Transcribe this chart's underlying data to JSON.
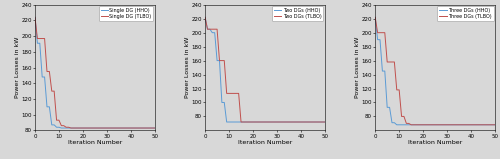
{
  "figsize": [
    5.0,
    1.59
  ],
  "dpi": 100,
  "background_color": "#d8d8d8",
  "subplots": [
    {
      "legend_labels": [
        "Single DG (HHO)",
        "Single DG (TLBO)"
      ],
      "xlabel": "Iteration Number",
      "ylabel": "Power Losses in kW",
      "ylim": [
        80,
        240
      ],
      "xlim": [
        0,
        50
      ],
      "yticks": [
        80,
        100,
        120,
        140,
        160,
        180,
        200,
        220,
        240
      ],
      "xticks": [
        0,
        10,
        20,
        30,
        40,
        50
      ],
      "hho_x": [
        0,
        1,
        2,
        3,
        4,
        5,
        6,
        7,
        8,
        9,
        10,
        11,
        12,
        13,
        14,
        50
      ],
      "hho_y": [
        224,
        191,
        191,
        148,
        148,
        110,
        110,
        87,
        87,
        84,
        84,
        83,
        83,
        83,
        83,
        83
      ],
      "tlbo_x": [
        0,
        1,
        2,
        3,
        4,
        5,
        6,
        7,
        8,
        9,
        10,
        11,
        12,
        13,
        14,
        15,
        50
      ],
      "tlbo_y": [
        224,
        197,
        197,
        197,
        197,
        155,
        155,
        130,
        130,
        93,
        93,
        86,
        86,
        84,
        84,
        83,
        83
      ],
      "hho_color": "#5b9bd5",
      "tlbo_color": "#c0504d"
    },
    {
      "legend_labels": [
        "Two DGs (HHO)",
        "Two DGs (TLBO)"
      ],
      "xlabel": "Iteration Number",
      "ylabel": "Power Losses in kW",
      "ylim": [
        60,
        240
      ],
      "xlim": [
        0,
        50
      ],
      "yticks": [
        80,
        100,
        120,
        140,
        160,
        180,
        200,
        220,
        240
      ],
      "xticks": [
        0,
        10,
        20,
        30,
        40,
        50
      ],
      "hho_x": [
        0,
        1,
        2,
        3,
        4,
        5,
        6,
        7,
        8,
        9,
        10,
        11,
        12,
        13,
        14,
        50
      ],
      "hho_y": [
        222,
        205,
        205,
        200,
        200,
        160,
        160,
        100,
        100,
        72,
        72,
        72,
        72,
        72,
        72,
        72
      ],
      "tlbo_x": [
        0,
        1,
        2,
        3,
        4,
        5,
        6,
        7,
        8,
        9,
        10,
        11,
        12,
        13,
        14,
        15,
        16,
        17,
        50
      ],
      "tlbo_y": [
        222,
        205,
        205,
        205,
        205,
        205,
        160,
        160,
        160,
        113,
        113,
        113,
        113,
        113,
        113,
        72,
        72,
        72,
        72
      ],
      "hho_color": "#5b9bd5",
      "tlbo_color": "#c0504d"
    },
    {
      "legend_labels": [
        "Three DGs (HHO)",
        "Three DGs (TLBO)"
      ],
      "xlabel": "Iteration Number",
      "ylabel": "Power Losses in kW",
      "ylim": [
        60,
        240
      ],
      "xlim": [
        0,
        50
      ],
      "yticks": [
        80,
        100,
        120,
        140,
        160,
        180,
        200,
        220,
        240
      ],
      "xticks": [
        0,
        10,
        20,
        30,
        40,
        50
      ],
      "hho_x": [
        0,
        1,
        2,
        3,
        4,
        5,
        6,
        7,
        8,
        9,
        10,
        11,
        12,
        13,
        50
      ],
      "hho_y": [
        222,
        190,
        190,
        145,
        145,
        93,
        93,
        71,
        71,
        68,
        68,
        68,
        68,
        68,
        68
      ],
      "tlbo_x": [
        0,
        1,
        2,
        3,
        4,
        5,
        6,
        7,
        8,
        9,
        10,
        11,
        12,
        13,
        14,
        15,
        16,
        17,
        50
      ],
      "tlbo_y": [
        222,
        200,
        200,
        200,
        200,
        158,
        158,
        158,
        158,
        118,
        118,
        80,
        80,
        70,
        70,
        68,
        68,
        68,
        68
      ],
      "hho_color": "#5b9bd5",
      "tlbo_color": "#c0504d"
    }
  ]
}
